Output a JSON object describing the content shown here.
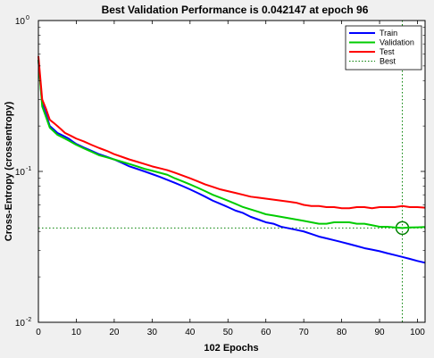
{
  "chart_data": {
    "type": "line",
    "title": "Best Validation Performance is 0.042147 at epoch 96",
    "xlabel": "102 Epochs",
    "ylabel": "Cross-Entropy  (crossentropy)",
    "xlim": [
      0,
      102
    ],
    "ylim": [
      0.01,
      1
    ],
    "yscale": "log",
    "x_ticks": [
      0,
      10,
      20,
      30,
      40,
      50,
      60,
      70,
      80,
      90,
      100
    ],
    "y_ticks": [
      {
        "value": 0.01,
        "base": "10",
        "exp": "-2"
      },
      {
        "value": 0.1,
        "base": "10",
        "exp": "-1"
      },
      {
        "value": 1,
        "base": "10",
        "exp": "0"
      }
    ],
    "grid": false,
    "legend_position": "top-right",
    "series": [
      {
        "name": "Train",
        "color": "#0000ff",
        "x": [
          0,
          1,
          2,
          3,
          4,
          5,
          6,
          7,
          8,
          9,
          10,
          12,
          14,
          16,
          18,
          20,
          22,
          24,
          26,
          28,
          30,
          32,
          34,
          36,
          38,
          40,
          42,
          44,
          46,
          48,
          50,
          52,
          54,
          56,
          58,
          60,
          62,
          64,
          66,
          68,
          70,
          72,
          74,
          76,
          78,
          80,
          82,
          84,
          86,
          88,
          90,
          92,
          94,
          96,
          98,
          100,
          102
        ],
        "y": [
          0.55,
          0.28,
          0.24,
          0.2,
          0.19,
          0.18,
          0.175,
          0.17,
          0.165,
          0.158,
          0.152,
          0.144,
          0.137,
          0.13,
          0.125,
          0.12,
          0.114,
          0.108,
          0.104,
          0.1,
          0.096,
          0.092,
          0.088,
          0.084,
          0.08,
          0.076,
          0.072,
          0.068,
          0.064,
          0.061,
          0.058,
          0.055,
          0.053,
          0.05,
          0.048,
          0.046,
          0.045,
          0.043,
          0.042,
          0.041,
          0.04,
          0.0385,
          0.037,
          0.036,
          0.035,
          0.034,
          0.033,
          0.032,
          0.031,
          0.0303,
          0.0296,
          0.0287,
          0.0279,
          0.0271,
          0.0263,
          0.0255,
          0.0248
        ]
      },
      {
        "name": "Validation",
        "color": "#00cc00",
        "x": [
          0,
          1,
          2,
          3,
          4,
          5,
          6,
          7,
          8,
          9,
          10,
          12,
          14,
          16,
          18,
          20,
          22,
          24,
          26,
          28,
          30,
          32,
          34,
          36,
          38,
          40,
          42,
          44,
          46,
          48,
          50,
          52,
          54,
          56,
          58,
          60,
          62,
          64,
          66,
          68,
          70,
          72,
          74,
          76,
          78,
          80,
          82,
          84,
          86,
          88,
          90,
          92,
          94,
          96,
          98,
          100,
          102
        ],
        "y": [
          0.55,
          0.27,
          0.23,
          0.195,
          0.185,
          0.175,
          0.17,
          0.165,
          0.16,
          0.155,
          0.15,
          0.142,
          0.135,
          0.128,
          0.124,
          0.12,
          0.116,
          0.112,
          0.108,
          0.104,
          0.101,
          0.098,
          0.095,
          0.09,
          0.086,
          0.082,
          0.078,
          0.074,
          0.07,
          0.067,
          0.064,
          0.061,
          0.058,
          0.056,
          0.054,
          0.052,
          0.051,
          0.05,
          0.049,
          0.048,
          0.047,
          0.046,
          0.045,
          0.045,
          0.046,
          0.046,
          0.046,
          0.045,
          0.045,
          0.044,
          0.043,
          0.043,
          0.0425,
          0.042147,
          0.0425,
          0.0426,
          0.0428
        ]
      },
      {
        "name": "Test",
        "color": "#ff0000",
        "x": [
          0,
          1,
          2,
          3,
          4,
          5,
          6,
          7,
          8,
          9,
          10,
          12,
          14,
          16,
          18,
          20,
          22,
          24,
          26,
          28,
          30,
          32,
          34,
          36,
          38,
          40,
          42,
          44,
          46,
          48,
          50,
          52,
          54,
          56,
          58,
          60,
          62,
          64,
          66,
          68,
          70,
          72,
          74,
          76,
          78,
          80,
          82,
          84,
          86,
          88,
          90,
          92,
          94,
          96,
          98,
          100,
          102
        ],
        "y": [
          0.58,
          0.3,
          0.26,
          0.22,
          0.21,
          0.2,
          0.19,
          0.18,
          0.175,
          0.17,
          0.165,
          0.158,
          0.15,
          0.143,
          0.137,
          0.13,
          0.125,
          0.12,
          0.116,
          0.112,
          0.108,
          0.105,
          0.102,
          0.098,
          0.094,
          0.09,
          0.086,
          0.082,
          0.079,
          0.076,
          0.074,
          0.072,
          0.07,
          0.068,
          0.067,
          0.066,
          0.065,
          0.064,
          0.063,
          0.062,
          0.06,
          0.059,
          0.059,
          0.058,
          0.058,
          0.057,
          0.057,
          0.058,
          0.058,
          0.057,
          0.058,
          0.058,
          0.058,
          0.059,
          0.058,
          0.058,
          0.0575
        ]
      }
    ],
    "best": {
      "name": "Best",
      "color": "#008000",
      "epoch": 96,
      "value": 0.042147
    }
  }
}
